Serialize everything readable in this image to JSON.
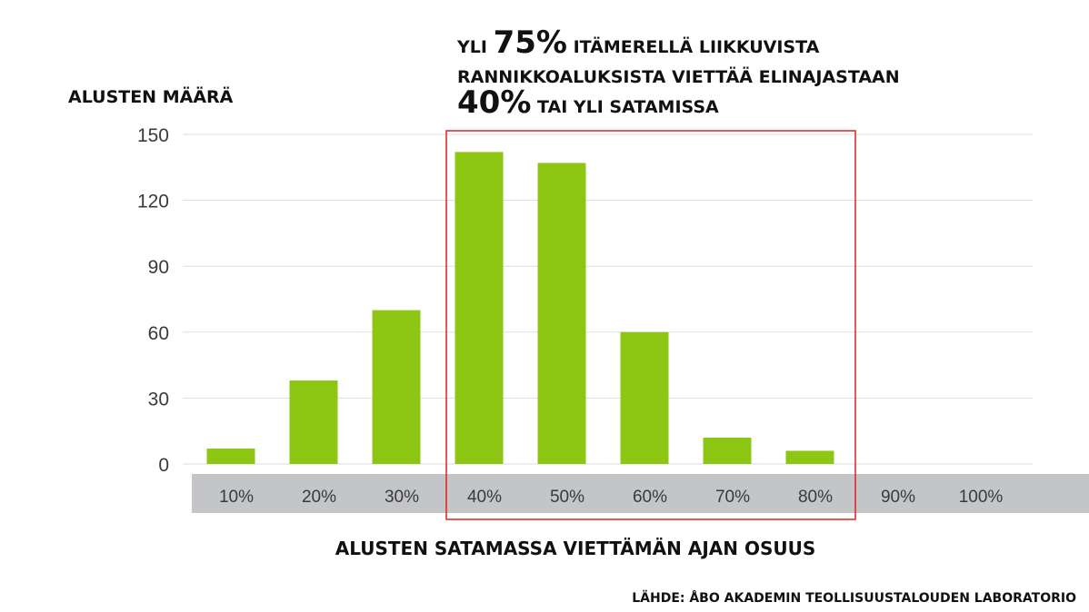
{
  "chart_data": {
    "type": "bar",
    "headline": {
      "line1": [
        {
          "text": "YLI ",
          "big": false
        },
        {
          "text": "75%",
          "big": true
        },
        {
          "text": " ITÄMERELLÄ LIIKKUVISTA",
          "big": false
        }
      ],
      "line2": [
        {
          "text": "RANNIKKOALUKSISTA VIETTÄÄ ELINAJASTAAN",
          "big": false
        }
      ],
      "line3": [
        {
          "text": "40%",
          "big": true
        },
        {
          "text": " TAI YLI SATAMISSA",
          "big": false
        }
      ]
    },
    "ylabel": "ALUSTEN MÄÄRÄ",
    "xlabel": "ALUSTEN SATAMASSA VIETTÄMÄN AJAN OSUUS",
    "source": "LÄHDE: ÅBO AKADEMIN TEOLLISUUSTALOUDEN LABORATORIO",
    "categories": [
      "10%",
      "20%",
      "30%",
      "40%",
      "50%",
      "60%",
      "70%",
      "80%",
      "90%",
      "100%"
    ],
    "values": [
      7,
      38,
      70,
      142,
      137,
      60,
      12,
      6,
      0,
      0
    ],
    "ylim": [
      0,
      150
    ],
    "yticks": [
      0,
      30,
      60,
      90,
      120,
      150
    ],
    "grid": true,
    "highlight_range": [
      "40%",
      "80%"
    ],
    "colors": {
      "bar": "#8dc713",
      "grid": "#dedede",
      "axis_band": "#c3c5c8",
      "highlight": "#e0201b"
    }
  }
}
